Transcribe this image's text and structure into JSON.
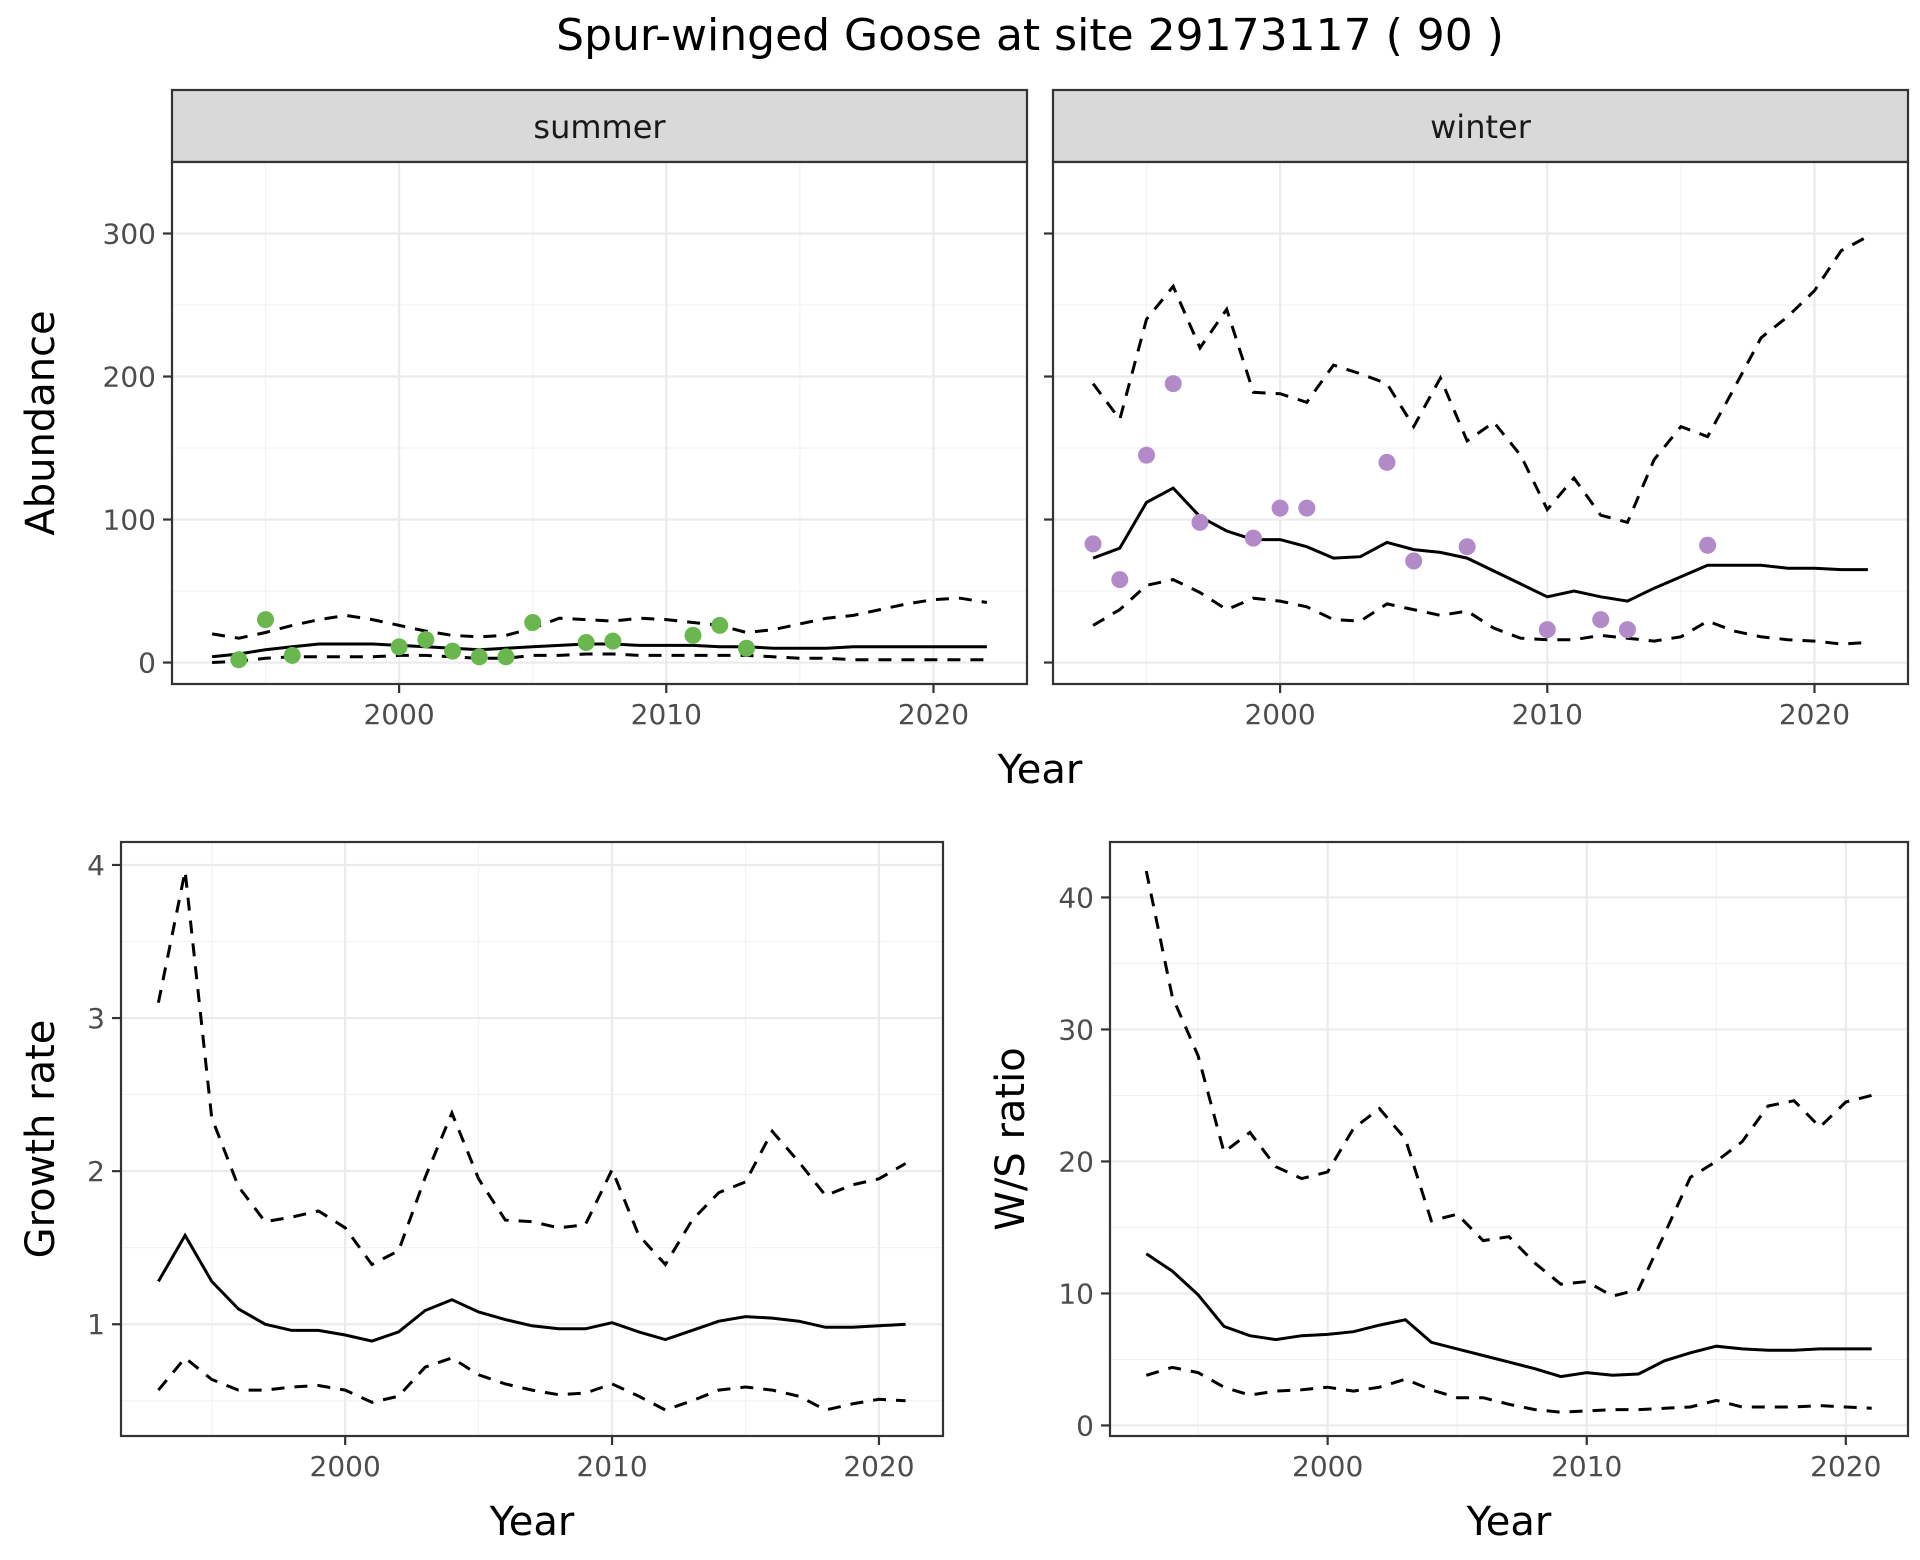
{
  "title": "Spur-winged Goose at site 29173117 ( 90 )",
  "colors": {
    "summer_points": "#6ab74f",
    "winter_points": "#b18ac7",
    "lines": "#000000"
  },
  "chart_data": [
    {
      "id": "abundance-summer",
      "type": "line",
      "facet": "summer",
      "xlabel": "Year",
      "ylabel": "Abundance",
      "xlim": [
        1991.5,
        2023.5
      ],
      "ylim": [
        -15,
        350
      ],
      "xticks": [
        2000,
        2010,
        2020
      ],
      "yticks": [
        0,
        100,
        200,
        300
      ],
      "grid": true,
      "series": [
        {
          "role": "mean",
          "x": [
            1993,
            1994,
            1995,
            1996,
            1997,
            1998,
            1999,
            2000,
            2001,
            2002,
            2003,
            2004,
            2005,
            2006,
            2007,
            2008,
            2009,
            2010,
            2011,
            2012,
            2013,
            2014,
            2015,
            2016,
            2017,
            2018,
            2019,
            2020,
            2021,
            2022
          ],
          "values": [
            4,
            6,
            9,
            11,
            13,
            13,
            13,
            12,
            11,
            10,
            9,
            10,
            11,
            12,
            13,
            13,
            12,
            12,
            12,
            11,
            11,
            10,
            10,
            10,
            11,
            11,
            11,
            11,
            11,
            11
          ]
        },
        {
          "role": "upper",
          "x": [
            1993,
            1994,
            1995,
            1996,
            1997,
            1998,
            1999,
            2000,
            2001,
            2002,
            2003,
            2004,
            2005,
            2006,
            2007,
            2008,
            2009,
            2010,
            2011,
            2012,
            2013,
            2014,
            2015,
            2016,
            2017,
            2018,
            2019,
            2020,
            2021,
            2022
          ],
          "values": [
            20,
            17,
            21,
            26,
            30,
            33,
            30,
            26,
            22,
            19,
            18,
            19,
            24,
            31,
            30,
            29,
            31,
            30,
            28,
            26,
            21,
            23,
            27,
            31,
            33,
            37,
            41,
            44,
            45,
            42
          ]
        },
        {
          "role": "lower",
          "x": [
            1993,
            1994,
            1995,
            1996,
            1997,
            1998,
            1999,
            2000,
            2001,
            2002,
            2003,
            2004,
            2005,
            2006,
            2007,
            2008,
            2009,
            2010,
            2011,
            2012,
            2013,
            2014,
            2015,
            2016,
            2017,
            2018,
            2019,
            2020,
            2021,
            2022
          ],
          "values": [
            0,
            1,
            3,
            4,
            4,
            4,
            4,
            5,
            5,
            4,
            3,
            3,
            5,
            5,
            6,
            6,
            5,
            5,
            5,
            5,
            5,
            4,
            3,
            3,
            2,
            2,
            2,
            2,
            2,
            2
          ]
        },
        {
          "role": "observed",
          "x": [
            1994,
            1995,
            1996,
            2000,
            2001,
            2002,
            2003,
            2004,
            2005,
            2007,
            2008,
            2011,
            2012,
            2013
          ],
          "values": [
            2,
            30,
            5,
            11,
            16,
            8,
            4,
            4,
            28,
            14,
            15,
            19,
            26,
            10
          ]
        }
      ]
    },
    {
      "id": "abundance-winter",
      "type": "line",
      "facet": "winter",
      "xlabel": "Year",
      "ylabel": "Abundance",
      "xlim": [
        1991.5,
        2023.5
      ],
      "ylim": [
        -15,
        350
      ],
      "xticks": [
        2000,
        2010,
        2020
      ],
      "yticks": [
        0,
        100,
        200,
        300
      ],
      "grid": true,
      "series": [
        {
          "role": "mean",
          "x": [
            1993,
            1994,
            1995,
            1996,
            1997,
            1998,
            1999,
            2000,
            2001,
            2002,
            2003,
            2004,
            2005,
            2006,
            2007,
            2008,
            2009,
            2010,
            2011,
            2012,
            2013,
            2014,
            2015,
            2016,
            2017,
            2018,
            2019,
            2020,
            2021,
            2022
          ],
          "values": [
            73,
            80,
            112,
            122,
            102,
            92,
            86,
            86,
            81,
            73,
            74,
            84,
            79,
            77,
            73,
            64,
            55,
            46,
            50,
            46,
            43,
            52,
            60,
            68,
            68,
            68,
            66,
            66,
            65,
            65
          ]
        },
        {
          "role": "upper",
          "x": [
            1993,
            1994,
            1995,
            1996,
            1997,
            1998,
            1999,
            2000,
            2001,
            2002,
            2003,
            2004,
            2005,
            2006,
            2007,
            2008,
            2009,
            2010,
            2011,
            2012,
            2013,
            2014,
            2015,
            2016,
            2017,
            2018,
            2019,
            2020,
            2021,
            2022
          ],
          "values": [
            195,
            170,
            240,
            263,
            220,
            247,
            189,
            188,
            182,
            208,
            202,
            195,
            165,
            199,
            155,
            168,
            145,
            107,
            129,
            103,
            98,
            142,
            165,
            158,
            192,
            227,
            242,
            260,
            288,
            298
          ]
        },
        {
          "role": "lower",
          "x": [
            1993,
            1994,
            1995,
            1996,
            1997,
            1998,
            1999,
            2000,
            2001,
            2002,
            2003,
            2004,
            2005,
            2006,
            2007,
            2008,
            2009,
            2010,
            2011,
            2012,
            2013,
            2014,
            2015,
            2016,
            2017,
            2018,
            2019,
            2020,
            2021,
            2022
          ],
          "values": [
            26,
            37,
            54,
            58,
            49,
            37,
            45,
            43,
            39,
            30,
            29,
            41,
            37,
            33,
            36,
            24,
            17,
            16,
            16,
            19,
            17,
            15,
            18,
            29,
            22,
            18,
            16,
            15,
            13,
            14
          ]
        },
        {
          "role": "observed",
          "x": [
            1993,
            1994,
            1995,
            1996,
            1997,
            1999,
            2000,
            2001,
            2004,
            2005,
            2007,
            2010,
            2012,
            2013,
            2016
          ],
          "values": [
            83,
            58,
            145,
            195,
            98,
            87,
            108,
            108,
            140,
            71,
            81,
            23,
            30,
            23,
            82
          ]
        }
      ]
    },
    {
      "id": "growth-rate",
      "type": "line",
      "xlabel": "Year",
      "ylabel": "Growth rate",
      "xlim": [
        1991.6,
        2022.4
      ],
      "ylim": [
        0.27,
        4.15
      ],
      "xticks": [
        2000,
        2010,
        2020
      ],
      "yticks": [
        1,
        2,
        3,
        4
      ],
      "grid": true,
      "series": [
        {
          "role": "mean",
          "x": [
            1993,
            1994,
            1995,
            1996,
            1997,
            1998,
            1999,
            2000,
            2001,
            2002,
            2003,
            2004,
            2005,
            2006,
            2007,
            2008,
            2009,
            2010,
            2011,
            2012,
            2013,
            2014,
            2015,
            2016,
            2017,
            2018,
            2019,
            2020,
            2021
          ],
          "values": [
            1.28,
            1.58,
            1.28,
            1.1,
            1.0,
            0.96,
            0.96,
            0.93,
            0.89,
            0.95,
            1.09,
            1.16,
            1.08,
            1.03,
            0.99,
            0.97,
            0.97,
            1.01,
            0.95,
            0.9,
            0.96,
            1.02,
            1.05,
            1.04,
            1.02,
            0.98,
            0.98,
            0.99,
            1.0
          ]
        },
        {
          "role": "upper",
          "x": [
            1993,
            1994,
            1995,
            1996,
            1997,
            1998,
            1999,
            2000,
            2001,
            2002,
            2003,
            2004,
            2005,
            2006,
            2007,
            2008,
            2009,
            2010,
            2011,
            2012,
            2013,
            2014,
            2015,
            2016,
            2017,
            2018,
            2019,
            2020,
            2021
          ],
          "values": [
            3.1,
            3.96,
            2.35,
            1.9,
            1.67,
            1.7,
            1.74,
            1.63,
            1.39,
            1.48,
            1.96,
            2.38,
            1.95,
            1.68,
            1.67,
            1.63,
            1.65,
            2.01,
            1.58,
            1.39,
            1.68,
            1.86,
            1.93,
            2.26,
            2.06,
            1.84,
            1.91,
            1.95,
            2.05
          ]
        },
        {
          "role": "lower",
          "x": [
            1993,
            1994,
            1995,
            1996,
            1997,
            1998,
            1999,
            2000,
            2001,
            2002,
            2003,
            2004,
            2005,
            2006,
            2007,
            2008,
            2009,
            2010,
            2011,
            2012,
            2013,
            2014,
            2015,
            2016,
            2017,
            2018,
            2019,
            2020,
            2021
          ],
          "values": [
            0.57,
            0.78,
            0.64,
            0.57,
            0.57,
            0.59,
            0.6,
            0.57,
            0.49,
            0.53,
            0.72,
            0.78,
            0.67,
            0.61,
            0.57,
            0.54,
            0.55,
            0.61,
            0.53,
            0.44,
            0.5,
            0.57,
            0.59,
            0.57,
            0.53,
            0.44,
            0.48,
            0.51,
            0.5
          ]
        }
      ]
    },
    {
      "id": "ws-ratio",
      "type": "line",
      "xlabel": "Year",
      "ylabel": "W/S ratio",
      "xlim": [
        1991.6,
        2022.4
      ],
      "ylim": [
        -0.8,
        44.2
      ],
      "xticks": [
        2000,
        2010,
        2020
      ],
      "yticks": [
        0,
        10,
        20,
        30,
        40
      ],
      "grid": true,
      "series": [
        {
          "role": "mean",
          "x": [
            1993,
            1994,
            1995,
            1996,
            1997,
            1998,
            1999,
            2000,
            2001,
            2002,
            2003,
            2004,
            2005,
            2006,
            2007,
            2008,
            2009,
            2010,
            2011,
            2012,
            2013,
            2014,
            2015,
            2016,
            2017,
            2018,
            2019,
            2020,
            2021
          ],
          "values": [
            13,
            11.7,
            9.9,
            7.5,
            6.8,
            6.5,
            6.8,
            6.9,
            7.1,
            7.6,
            8.0,
            6.3,
            5.8,
            5.3,
            4.8,
            4.3,
            3.7,
            4.0,
            3.8,
            3.9,
            4.9,
            5.5,
            6.0,
            5.8,
            5.7,
            5.7,
            5.8,
            5.8,
            5.8
          ]
        },
        {
          "role": "upper",
          "x": [
            1993,
            1994,
            1995,
            1996,
            1997,
            1998,
            1999,
            2000,
            2001,
            2002,
            2003,
            2004,
            2005,
            2006,
            2007,
            2008,
            2009,
            2010,
            2011,
            2012,
            2013,
            2014,
            2015,
            2016,
            2017,
            2018,
            2019,
            2020,
            2021
          ],
          "values": [
            42,
            32.5,
            28,
            20.7,
            22.2,
            19.6,
            18.7,
            19.2,
            22.5,
            24.0,
            21.7,
            15.5,
            16.0,
            14.0,
            14.3,
            12.3,
            10.7,
            10.9,
            9.8,
            10.3,
            14.5,
            18.8,
            20.0,
            21.5,
            24.2,
            24.6,
            22.6,
            24.5,
            25.0
          ]
        },
        {
          "role": "lower",
          "x": [
            1993,
            1994,
            1995,
            1996,
            1997,
            1998,
            1999,
            2000,
            2001,
            2002,
            2003,
            2004,
            2005,
            2006,
            2007,
            2008,
            2009,
            2010,
            2011,
            2012,
            2013,
            2014,
            2015,
            2016,
            2017,
            2018,
            2019,
            2020,
            2021
          ],
          "values": [
            3.8,
            4.4,
            4.0,
            2.9,
            2.3,
            2.6,
            2.7,
            2.9,
            2.6,
            2.9,
            3.5,
            2.7,
            2.1,
            2.1,
            1.6,
            1.2,
            1.0,
            1.1,
            1.2,
            1.2,
            1.3,
            1.4,
            1.9,
            1.4,
            1.4,
            1.4,
            1.5,
            1.4,
            1.3
          ]
        }
      ]
    }
  ]
}
